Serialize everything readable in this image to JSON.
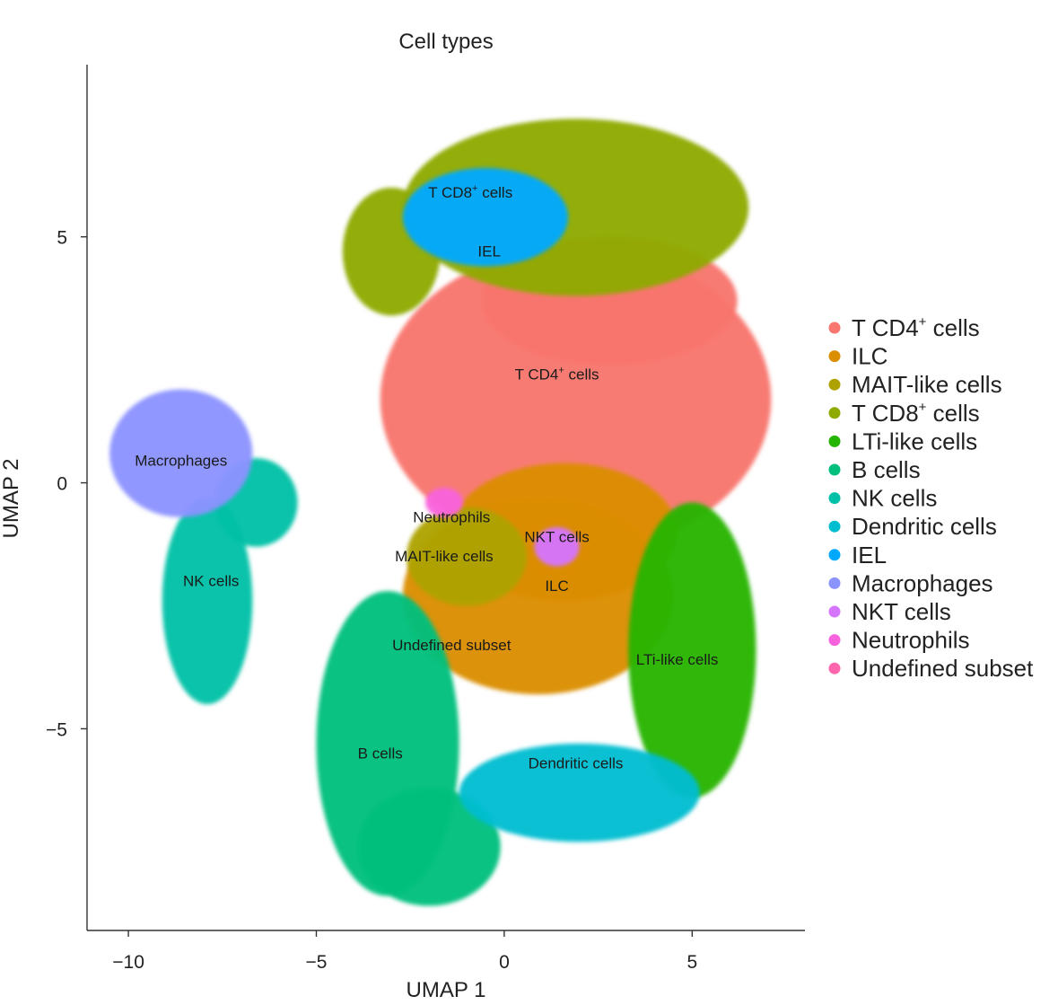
{
  "chart_data": {
    "type": "scatter",
    "title": "Cell types",
    "xlabel": "UMAP 1",
    "ylabel": "UMAP 2",
    "xlim": [
      -11.1,
      8.0
    ],
    "ylim": [
      -9.1,
      8.5
    ],
    "x_ticks": [
      {
        "value": -10,
        "label": "−10"
      },
      {
        "value": -5,
        "label": "−5"
      },
      {
        "value": 0,
        "label": "0"
      },
      {
        "value": 5,
        "label": "5"
      }
    ],
    "y_ticks": [
      {
        "value": -5,
        "label": "−5"
      },
      {
        "value": 0,
        "label": "0"
      },
      {
        "value": 5,
        "label": "5"
      }
    ],
    "grid": false,
    "legend_position": "right",
    "series": [
      {
        "name": "T CD4+ cells",
        "base": "T CD4",
        "sup": "+",
        "tail": " cells",
        "color": "#F8766D",
        "label": {
          "base": "T CD4",
          "sup": "+",
          "tail": " cells",
          "x": 1.4,
          "y": 2.1
        },
        "blobs": [
          {
            "cx": 1.9,
            "cy": 1.7,
            "rx": 5.2,
            "ry": 3.1,
            "rot": 0
          },
          {
            "cx": 2.8,
            "cy": 3.7,
            "rx": 3.4,
            "ry": 1.3,
            "rot": 0
          }
        ]
      },
      {
        "name": "ILC",
        "base": "ILC",
        "sup": "",
        "tail": "",
        "color": "#DB8E00",
        "label": {
          "base": "ILC",
          "sup": "",
          "tail": "",
          "x": 1.4,
          "y": -2.2
        },
        "blobs": [
          {
            "cx": 0.9,
            "cy": -2.3,
            "rx": 3.6,
            "ry": 2.0,
            "rot": 0
          },
          {
            "cx": 1.6,
            "cy": -1.0,
            "rx": 3.0,
            "ry": 1.4,
            "rot": 0
          }
        ]
      },
      {
        "name": "MAIT-like cells",
        "base": "MAIT-like cells",
        "sup": "",
        "tail": "",
        "color": "#AEA200",
        "label": {
          "base": "MAIT-like cells",
          "sup": "",
          "tail": "",
          "x": -1.6,
          "y": -1.6
        },
        "blobs": [
          {
            "cx": -1.0,
            "cy": -1.5,
            "rx": 1.6,
            "ry": 1.0,
            "rot": 0
          }
        ]
      },
      {
        "name": "T CD8+ cells",
        "base": "T CD8",
        "sup": "+",
        "tail": " cells",
        "color": "#8FAA00",
        "label": {
          "base": "T CD8",
          "sup": "+",
          "tail": " cells",
          "x": -0.9,
          "y": 5.8
        },
        "blobs": [
          {
            "cx": 1.9,
            "cy": 5.6,
            "rx": 4.6,
            "ry": 1.8,
            "rot": 0
          },
          {
            "cx": -3.0,
            "cy": 4.7,
            "rx": 1.3,
            "ry": 1.3,
            "rot": 0
          }
        ]
      },
      {
        "name": "LTi-like cells",
        "base": "LTi-like cells",
        "sup": "",
        "tail": "",
        "color": "#25B400",
        "label": {
          "base": "LTi-like cells",
          "sup": "",
          "tail": "",
          "x": 4.6,
          "y": -3.7
        },
        "blobs": [
          {
            "cx": 5.0,
            "cy": -3.4,
            "rx": 1.7,
            "ry": 3.0,
            "rot": 0
          }
        ]
      },
      {
        "name": "B cells",
        "base": "B cells",
        "sup": "",
        "tail": "",
        "color": "#00BF7D",
        "label": {
          "base": "B cells",
          "sup": "",
          "tail": "",
          "x": -3.3,
          "y": -5.6
        },
        "blobs": [
          {
            "cx": -3.1,
            "cy": -5.3,
            "rx": 1.9,
            "ry": 3.1,
            "rot": 0
          },
          {
            "cx": -2.0,
            "cy": -7.4,
            "rx": 1.9,
            "ry": 1.2,
            "rot": 0
          }
        ]
      },
      {
        "name": "NK cells",
        "base": "NK cells",
        "sup": "",
        "tail": "",
        "color": "#00C1A7",
        "label": {
          "base": "NK cells",
          "sup": "",
          "tail": "",
          "x": -7.8,
          "y": -2.1
        },
        "blobs": [
          {
            "cx": -7.9,
            "cy": -2.4,
            "rx": 1.2,
            "ry": 2.1,
            "rot": 0
          },
          {
            "cx": -6.6,
            "cy": -0.4,
            "rx": 1.1,
            "ry": 0.9,
            "rot": 0
          }
        ]
      },
      {
        "name": "Dendritic cells",
        "base": "Dendritic cells",
        "sup": "",
        "tail": "",
        "color": "#00BDD0",
        "label": {
          "base": "Dendritic cells",
          "sup": "",
          "tail": "",
          "x": 1.9,
          "y": -5.8
        },
        "blobs": [
          {
            "cx": 2.0,
            "cy": -6.3,
            "rx": 3.2,
            "ry": 1.0,
            "rot": 0
          }
        ]
      },
      {
        "name": "IEL",
        "base": "IEL",
        "sup": "",
        "tail": "",
        "color": "#00A9FF",
        "label": {
          "base": "IEL",
          "sup": "",
          "tail": "",
          "x": -0.4,
          "y": 4.6
        },
        "blobs": [
          {
            "cx": -0.5,
            "cy": 5.4,
            "rx": 2.2,
            "ry": 1.0,
            "rot": 0
          }
        ]
      },
      {
        "name": "Macrophages",
        "base": "Macrophages",
        "sup": "",
        "tail": "",
        "color": "#8B93FF",
        "label": {
          "base": "Macrophages",
          "sup": "",
          "tail": "",
          "x": -8.6,
          "y": 0.35
        },
        "blobs": [
          {
            "cx": -8.6,
            "cy": 0.6,
            "rx": 1.9,
            "ry": 1.3,
            "rot": 0
          }
        ]
      },
      {
        "name": "NKT cells",
        "base": "NKT cells",
        "sup": "",
        "tail": "",
        "color": "#D575FE",
        "label": {
          "base": "NKT cells",
          "sup": "",
          "tail": "",
          "x": 1.4,
          "y": -1.2
        },
        "blobs": [
          {
            "cx": 1.4,
            "cy": -1.3,
            "rx": 0.6,
            "ry": 0.4,
            "rot": 0
          }
        ]
      },
      {
        "name": "Neutrophils",
        "base": "Neutrophils",
        "sup": "",
        "tail": "",
        "color": "#F962DD",
        "label": {
          "base": "Neutrophils",
          "sup": "",
          "tail": "",
          "x": -1.4,
          "y": -0.8
        },
        "blobs": [
          {
            "cx": -1.6,
            "cy": -0.4,
            "rx": 0.5,
            "ry": 0.3,
            "rot": 0
          }
        ]
      },
      {
        "name": "Undefined subset",
        "base": "Undefined subset",
        "sup": "",
        "tail": "",
        "color": "#FF65AC",
        "label": {
          "base": "Undefined subset",
          "sup": "",
          "tail": "",
          "x": -1.4,
          "y": -3.4
        },
        "blobs": []
      }
    ]
  }
}
